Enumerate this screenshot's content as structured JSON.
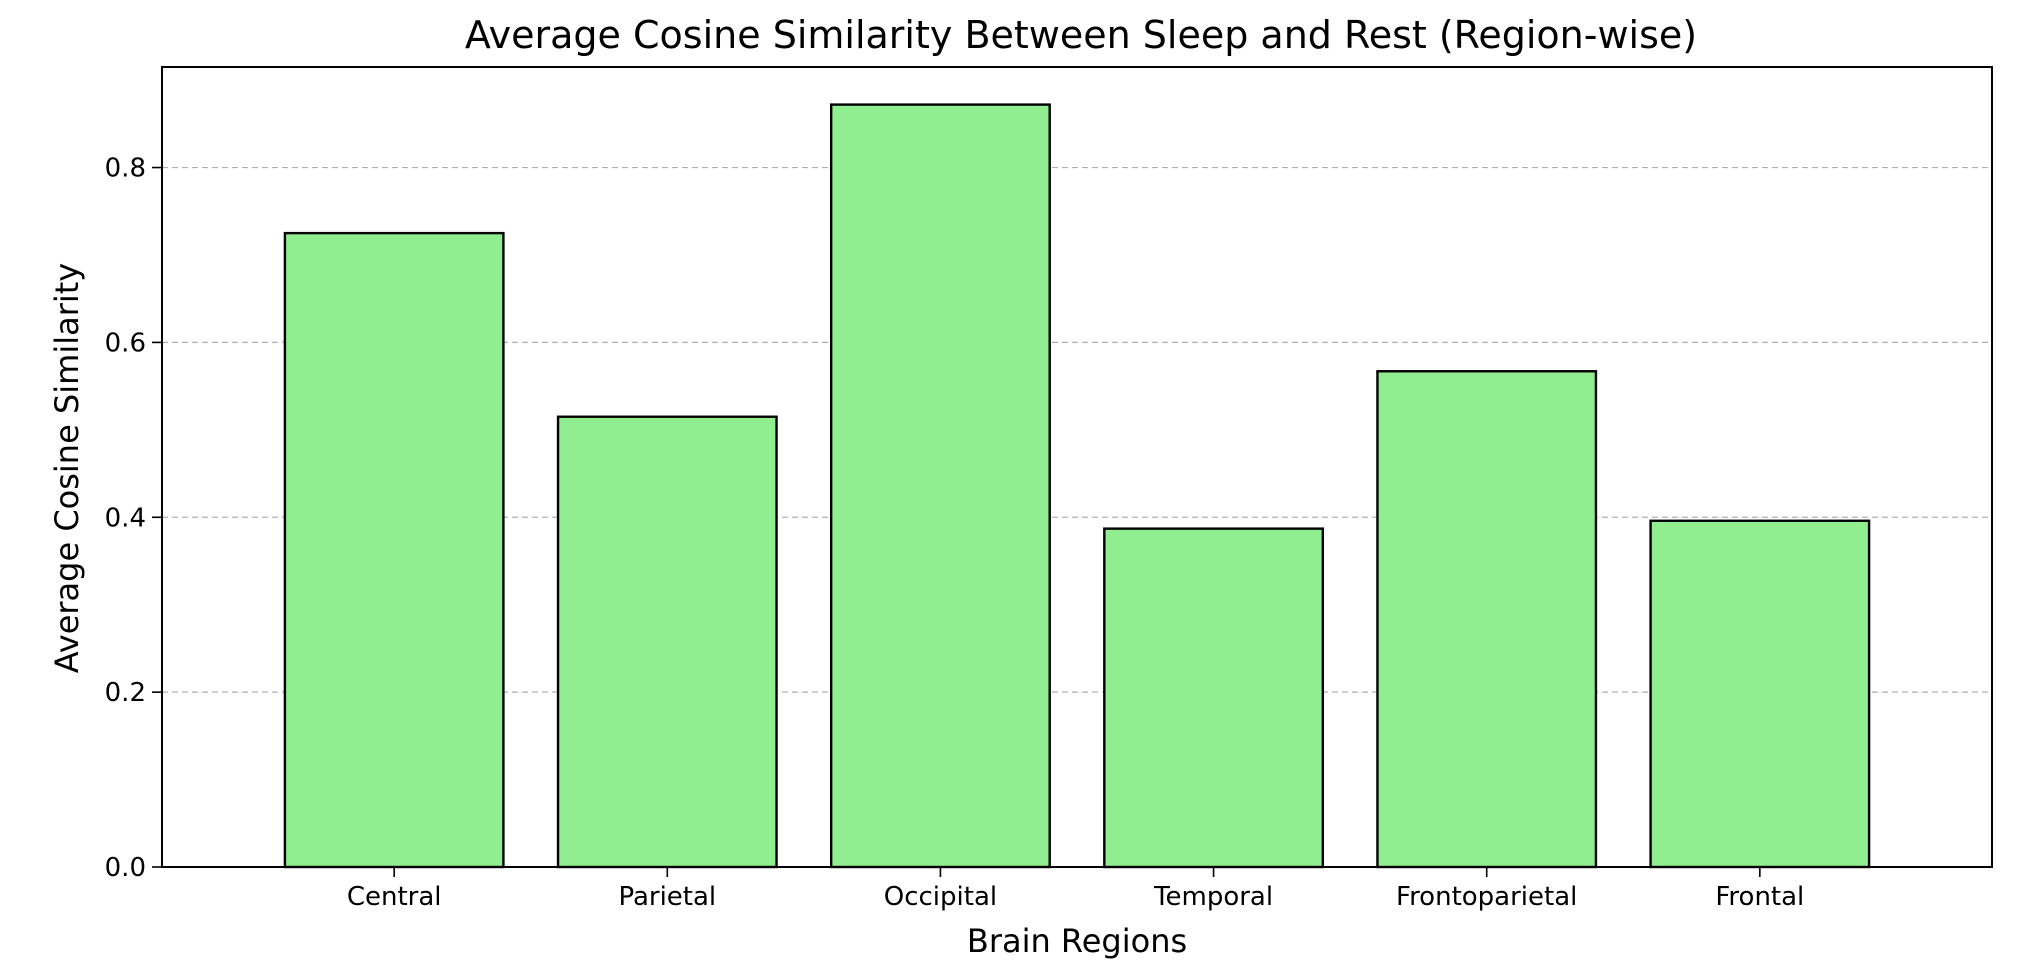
{
  "chart_data": {
    "type": "bar",
    "title": "Average Cosine Similarity Between Sleep and Rest (Region-wise)",
    "xlabel": "Brain Regions",
    "ylabel": "Average Cosine Similarity",
    "categories": [
      "Central",
      "Parietal",
      "Occipital",
      "Temporal",
      "Frontoparietal",
      "Frontal"
    ],
    "values": [
      0.725,
      0.515,
      0.872,
      0.387,
      0.567,
      0.396
    ],
    "ylim": [
      0,
      0.915
    ],
    "yticks": [
      0.0,
      0.2,
      0.4,
      0.6,
      0.8
    ],
    "ytick_labels": [
      "0.0",
      "0.2",
      "0.4",
      "0.6",
      "0.8"
    ],
    "bar_color": "#90ee90",
    "edge_color": "#000000",
    "grid": "y-dashed",
    "legend": "none"
  }
}
